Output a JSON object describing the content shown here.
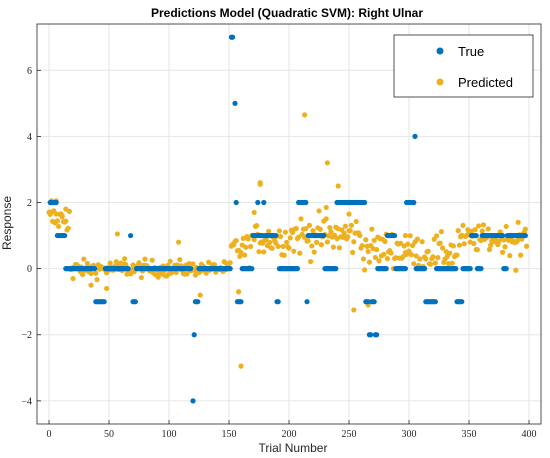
{
  "chart_data": {
    "type": "scatter",
    "title": "Predictions Model (Quadratic SVM): Right Ulnar",
    "xlabel": "Trial Number",
    "ylabel": "Response",
    "xlim": [
      -10,
      410
    ],
    "ylim": [
      -4.7,
      7.4
    ],
    "x_ticks": [
      0,
      50,
      100,
      150,
      200,
      250,
      300,
      350,
      400
    ],
    "y_ticks": [
      -4,
      -2,
      0,
      2,
      4,
      6
    ],
    "y_tick_labels": [
      "−4",
      "−2",
      "0",
      "2",
      "4",
      "6"
    ],
    "grid": true,
    "legend_position": "top-right",
    "colors": {
      "True": "#0072BD",
      "Predicted": "#EDB120"
    },
    "series": [
      {
        "name": "True",
        "color": "#0072BD",
        "segments": [
          [
            1,
            6,
            2
          ],
          [
            7,
            13,
            1
          ],
          [
            14,
            38,
            0
          ],
          [
            39,
            46,
            -1
          ],
          [
            47,
            66,
            0
          ],
          [
            68,
            68,
            1
          ],
          [
            70,
            72,
            -1
          ],
          [
            73,
            118,
            0
          ],
          [
            120,
            120,
            -4
          ],
          [
            121,
            121,
            -2
          ],
          [
            122,
            124,
            -1
          ],
          [
            125,
            151,
            0
          ],
          [
            152,
            153,
            7
          ],
          [
            155,
            155,
            5
          ],
          [
            156,
            156,
            2
          ],
          [
            157,
            160,
            -1
          ],
          [
            161,
            169,
            0
          ],
          [
            170,
            173,
            1
          ],
          [
            174,
            174,
            2
          ],
          [
            175,
            178,
            1
          ],
          [
            179,
            179,
            2
          ],
          [
            180,
            189,
            1
          ],
          [
            190,
            191,
            -1
          ],
          [
            192,
            207,
            0
          ],
          [
            208,
            214,
            2
          ],
          [
            215,
            215,
            -1
          ],
          [
            216,
            229,
            1
          ],
          [
            230,
            239,
            0
          ],
          [
            240,
            263,
            2
          ],
          [
            264,
            266,
            -1
          ],
          [
            267,
            268,
            -2
          ],
          [
            269,
            271,
            -1
          ],
          [
            272,
            273,
            -2
          ],
          [
            274,
            281,
            0
          ],
          [
            282,
            288,
            1
          ],
          [
            289,
            297,
            0
          ],
          [
            298,
            304,
            2
          ],
          [
            305,
            305,
            4
          ],
          [
            306,
            313,
            0
          ],
          [
            314,
            322,
            -1
          ],
          [
            323,
            339,
            0
          ],
          [
            340,
            344,
            -1
          ],
          [
            345,
            351,
            0
          ],
          [
            352,
            356,
            1
          ],
          [
            357,
            360,
            0
          ],
          [
            361,
            378,
            1
          ],
          [
            379,
            381,
            0
          ],
          [
            382,
            397,
            1
          ]
        ]
      },
      {
        "name": "Predicted",
        "color": "#EDB120",
        "noise": [
          [
            0,
            17,
            1.5,
            0.4
          ],
          [
            18,
            118,
            0.0,
            0.25
          ],
          [
            119,
            151,
            0.0,
            0.2
          ],
          [
            152,
            168,
            0.6,
            0.45
          ],
          [
            169,
            200,
            0.9,
            0.45
          ],
          [
            201,
            260,
            1.0,
            0.6
          ],
          [
            261,
            300,
            0.6,
            0.55
          ],
          [
            301,
            340,
            0.5,
            0.5
          ],
          [
            341,
            398,
            0.9,
            0.4
          ]
        ],
        "extra_points": [
          [
            2,
            2.05
          ],
          [
            4,
            2.0
          ],
          [
            6,
            2.05
          ],
          [
            14,
            1.8
          ],
          [
            11,
            1.6
          ],
          [
            20,
            -0.3
          ],
          [
            35,
            -0.5
          ],
          [
            48,
            -0.6
          ],
          [
            57,
            1.05
          ],
          [
            63,
            0.3
          ],
          [
            108,
            0.8
          ],
          [
            126,
            -0.8
          ],
          [
            160,
            -2.95
          ],
          [
            158,
            -0.7
          ],
          [
            176,
            2.6
          ],
          [
            213,
            4.65
          ],
          [
            232,
            3.2
          ],
          [
            250,
            1.65
          ],
          [
            254,
            -1.25
          ],
          [
            266,
            -1.1
          ],
          [
            231,
            1.85
          ],
          [
            241,
            2.5
          ],
          [
            176,
            2.55
          ],
          [
            171,
            1.7
          ],
          [
            297,
            1.0
          ],
          [
            391,
            1.4
          ],
          [
            389,
            -0.05
          ]
        ]
      }
    ]
  }
}
